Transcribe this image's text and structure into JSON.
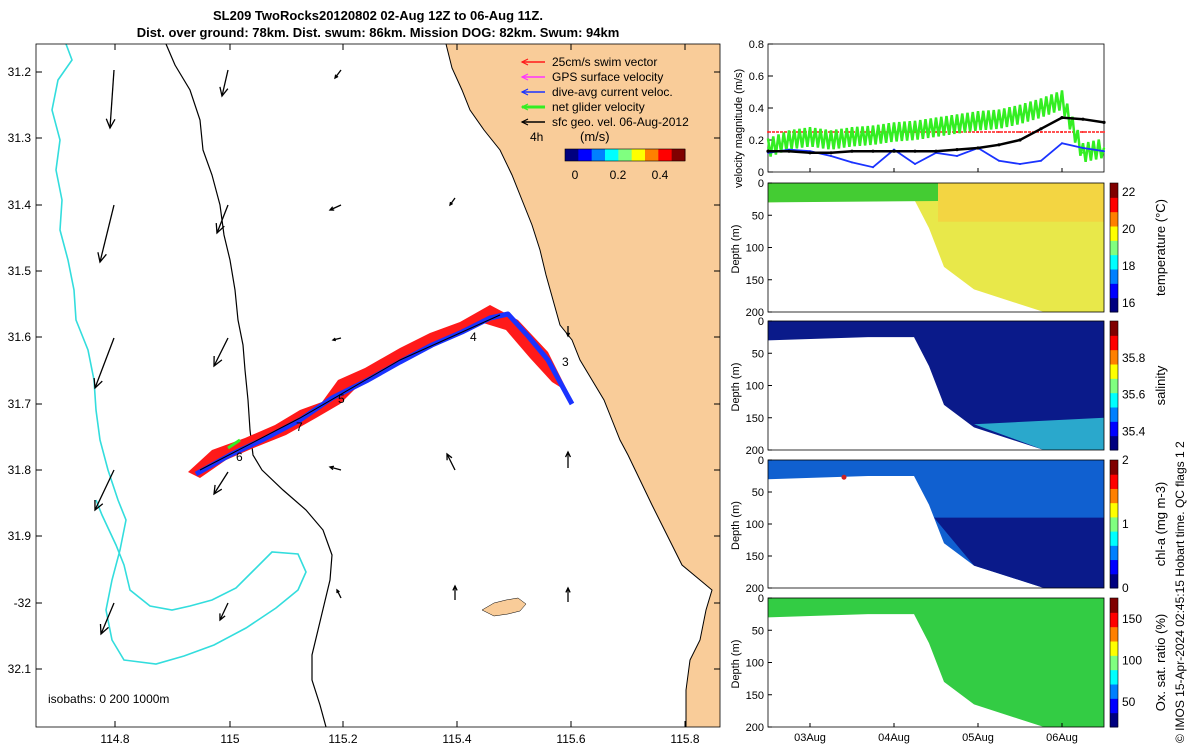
{
  "title_lines": [
    "SL209 TwoRocks20120802 02-Aug 12Z to 06-Aug 11Z.",
    "Dist. over ground: 78km. Dist. swum: 86km. Mission DOG: 82km. Swum: 94km"
  ],
  "colors": {
    "land": "#f9cc99",
    "isobath_200": "#000000",
    "isobath_1000": "#33dddd",
    "swim": "#ff1a1a",
    "gps": "#ff33ff",
    "dive_avg": "#1a33ff",
    "net": "#33ee22",
    "sfc_geo": "#000000"
  },
  "map": {
    "lon_ticks": [
      "114.8",
      "115",
      "115.2",
      "115.4",
      "115.6",
      "115.8"
    ],
    "lat_ticks": [
      "31.2",
      "31.3",
      "31.4",
      "31.5",
      "31.6",
      "31.7",
      "31.8",
      "31.9",
      "-32",
      "32.1"
    ],
    "legend": [
      {
        "key": "swim",
        "label": "25cm/s swim vector"
      },
      {
        "key": "gps",
        "label": "GPS surface velocity"
      },
      {
        "key": "dive_avg",
        "label": "dive-avg current veloc."
      },
      {
        "key": "net",
        "label": "net glider velocity"
      },
      {
        "key": "sfc_geo",
        "label": "sfc geo. vel. 06-Aug-2012"
      }
    ],
    "scale_label": "4h",
    "colorbar_title": "(m/s)",
    "colorbar_ticks": [
      "0",
      "0.2",
      "0.4"
    ],
    "isobaths_label": "isobaths: 0   200   1000m",
    "day_labels": [
      "3",
      "4",
      "5",
      "6",
      "7"
    ]
  },
  "chart_data": [
    {
      "type": "line",
      "title": "",
      "ylabel": "velocity magnitude (m/s)",
      "ylim": [
        0,
        0.8
      ],
      "y_ticks": [
        "0",
        "0.2",
        "0.4",
        "0.6",
        "0.8"
      ],
      "x": [
        2.5,
        2.75,
        3.0,
        3.25,
        3.5,
        3.75,
        4.0,
        4.25,
        4.5,
        4.75,
        5.0,
        5.25,
        5.5,
        5.75,
        6.0,
        6.25,
        6.5
      ],
      "series": [
        {
          "name": "swim",
          "values": [
            0.25,
            0.25,
            0.25,
            0.25,
            0.25,
            0.25,
            0.25,
            0.25,
            0.25,
            0.25,
            0.25,
            0.25,
            0.25,
            0.25,
            0.25,
            0.25,
            0.25
          ]
        },
        {
          "name": "net glider velocity",
          "values": [
            0.15,
            0.2,
            0.22,
            0.2,
            0.22,
            0.23,
            0.25,
            0.26,
            0.28,
            0.3,
            0.32,
            0.33,
            0.36,
            0.4,
            0.45,
            0.12,
            0.15
          ]
        },
        {
          "name": "dive-avg current veloc.",
          "values": [
            0.12,
            0.14,
            0.13,
            0.1,
            0.06,
            0.03,
            0.14,
            0.05,
            0.12,
            0.1,
            0.15,
            0.07,
            0.05,
            0.07,
            0.18,
            0.15,
            0.13
          ]
        },
        {
          "name": "sfc geo. vel.",
          "values": [
            0.13,
            0.13,
            0.12,
            0.12,
            0.13,
            0.13,
            0.13,
            0.13,
            0.13,
            0.14,
            0.15,
            0.17,
            0.2,
            0.27,
            0.34,
            0.33,
            0.31
          ]
        }
      ]
    },
    {
      "type": "heatmap",
      "variable": "temperature",
      "cbar_label": "temperature (°C)",
      "cbar_ticks": [
        "16",
        "18",
        "20",
        "22"
      ],
      "clim": [
        15.5,
        22.5
      ],
      "ylabel": "Depth (m)",
      "y_ticks": [
        "0",
        "50",
        "100",
        "150",
        "200"
      ]
    },
    {
      "type": "heatmap",
      "variable": "salinity",
      "cbar_label": "salinity",
      "cbar_ticks": [
        "35.4",
        "35.6",
        "35.8"
      ],
      "clim": [
        35.3,
        36.0
      ],
      "ylabel": "Depth (m)",
      "y_ticks": [
        "0",
        "50",
        "100",
        "150",
        "200"
      ]
    },
    {
      "type": "heatmap",
      "variable": "chl-a",
      "cbar_label": "chl-a (mg m-3)",
      "cbar_ticks": [
        "0",
        "1",
        "2"
      ],
      "clim": [
        0,
        2
      ],
      "ylabel": "Depth (m)",
      "y_ticks": [
        "0",
        "50",
        "100",
        "150",
        "200"
      ]
    },
    {
      "type": "heatmap",
      "variable": "oxygen",
      "cbar_label": "Ox. sat. ratio (%)",
      "cbar_ticks": [
        "50",
        "100",
        "150"
      ],
      "clim": [
        20,
        175
      ],
      "ylabel": "Depth (m)",
      "y_ticks": [
        "0",
        "50",
        "100",
        "150",
        "200"
      ],
      "x_ticks": [
        "03Aug",
        "04Aug",
        "05Aug",
        "06Aug"
      ]
    }
  ],
  "footer": "© IMOS 15-Apr-2024 02:45:15 Hobart time. QC flags 1  2"
}
